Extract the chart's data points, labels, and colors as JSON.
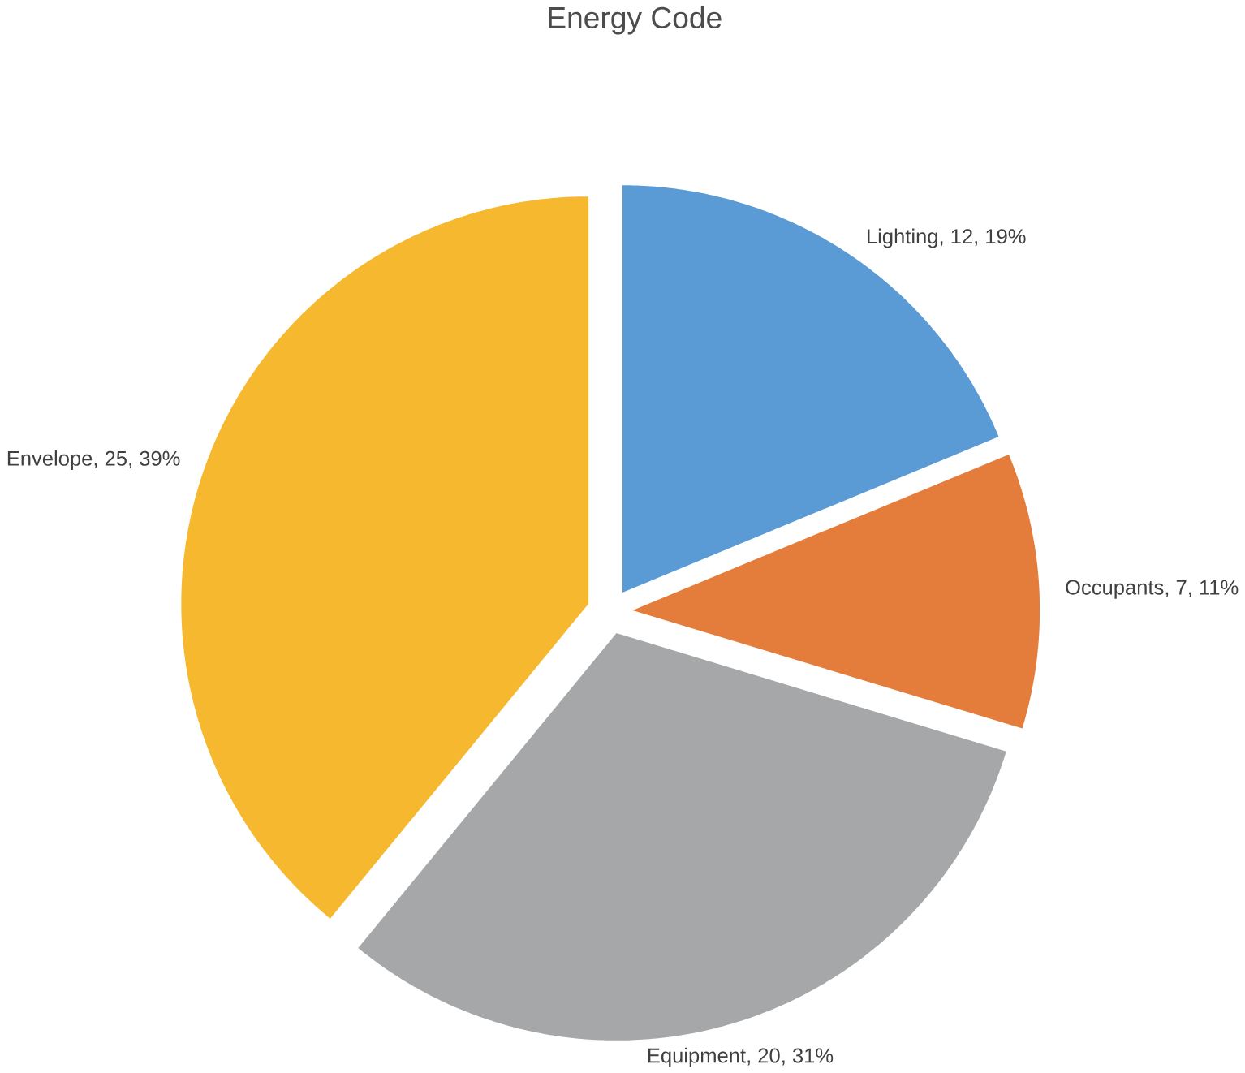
{
  "chart_data": {
    "type": "pie",
    "title": "Energy Code",
    "categories": [
      "Lighting, 12, 19%",
      "Occupants, 7, 11%",
      "Equipment, 20, 31%",
      "Envelope, 25, 39%"
    ],
    "values": [
      12,
      7,
      20,
      25
    ],
    "colors": [
      "#5b9bd5",
      "#e47d3b",
      "#a5a7a9",
      "#f5b82e"
    ]
  }
}
